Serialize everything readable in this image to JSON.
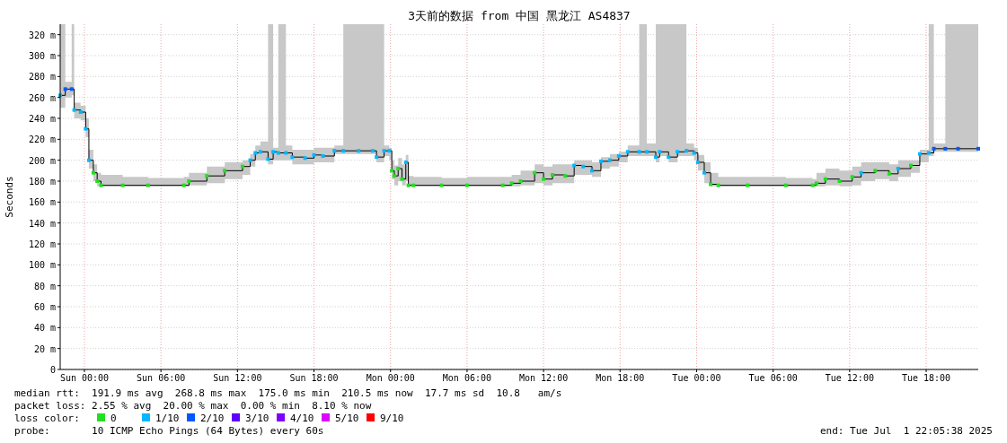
{
  "chart_data": {
    "type": "step",
    "title": "3天前的数据 from 中国 黑龙江 AS4837",
    "ylabel": "Seconds",
    "legend_title": "loss color:",
    "legend": "bottom",
    "grid": true,
    "line_style": "solid",
    "xlim": [
      "2025-06-28T22:06",
      "2025-07-01T22:05"
    ],
    "ylim": [
      0,
      330
    ],
    "xticks": [
      {
        "value": "2025-06-29T00:00",
        "label": "Sun 00:00"
      },
      {
        "value": "2025-06-29T06:00",
        "label": "Sun 06:00"
      },
      {
        "value": "2025-06-29T12:00",
        "label": "Sun 12:00"
      },
      {
        "value": "2025-06-29T18:00",
        "label": "Sun 18:00"
      },
      {
        "value": "2025-06-30T00:00",
        "label": "Mon 00:00"
      },
      {
        "value": "2025-06-30T06:00",
        "label": "Mon 06:00"
      },
      {
        "value": "2025-06-30T12:00",
        "label": "Mon 12:00"
      },
      {
        "value": "2025-06-30T18:00",
        "label": "Mon 18:00"
      },
      {
        "value": "2025-07-01T00:00",
        "label": "Tue 00:00"
      },
      {
        "value": "2025-07-01T06:00",
        "label": "Tue 06:00"
      },
      {
        "value": "2025-07-01T12:00",
        "label": "Tue 12:00"
      },
      {
        "value": "2025-07-01T18:00",
        "label": "Tue 18:00"
      }
    ],
    "yticks": [
      0,
      {
        "value": 20,
        "label": "20 m"
      },
      {
        "value": 40,
        "label": "40 m"
      },
      {
        "value": 60,
        "label": "60 m"
      },
      {
        "value": 80,
        "label": "80 m"
      },
      {
        "value": 100,
        "label": "100 m"
      },
      {
        "value": 120,
        "label": "120 m"
      },
      {
        "value": 140,
        "label": "140 m"
      },
      {
        "value": 160,
        "label": "160 m"
      },
      {
        "value": 180,
        "label": "180 m"
      },
      {
        "value": 200,
        "label": "200 m"
      },
      {
        "value": 220,
        "label": "220 m"
      },
      {
        "value": 240,
        "label": "240 m"
      },
      {
        "value": 260,
        "label": "260 m"
      },
      {
        "value": 280,
        "label": "280 m"
      },
      {
        "value": 300,
        "label": "300 m"
      },
      {
        "value": 320,
        "label": "320 m"
      }
    ],
    "annotations": [
      "median rtt:  191.9 ms avg  268.8 ms max  175.0 ms min  210.5 ms now  17.7 ms sd  10.8   am/s",
      "packet loss: 2.55 % avg  20.00 % max  0.00 % min  8.10 % now",
      "probe:       10 ICMP Echo Pings (64 Bytes) every 60s",
      "end: Tue Jul  1 22:05:38 2025"
    ],
    "series": [
      {
        "color": "#000000",
        "marker": "none",
        "x": [
          "2025-06-28T22:06",
          "2025-06-28T22:30",
          "2025-06-28T23:00",
          "2025-06-28T23:12",
          "2025-06-28T23:42",
          "2025-06-29T00:06",
          "2025-06-29T00:21",
          "2025-06-29T00:42",
          "2025-06-29T01:00",
          "2025-06-29T01:18",
          "2025-06-29T03:00",
          "2025-06-29T05:00",
          "2025-06-29T07:48",
          "2025-06-29T08:12",
          "2025-06-29T09:36",
          "2025-06-29T11:00",
          "2025-06-29T12:24",
          "2025-06-29T13:00",
          "2025-06-29T13:24",
          "2025-06-29T13:48",
          "2025-06-29T14:24",
          "2025-06-29T14:48",
          "2025-06-29T15:12",
          "2025-06-29T15:48",
          "2025-06-29T16:18",
          "2025-06-29T17:18",
          "2025-06-29T18:00",
          "2025-06-29T18:42",
          "2025-06-29T19:36",
          "2025-06-29T20:18",
          "2025-06-29T21:30",
          "2025-06-29T22:36",
          "2025-06-29T22:54",
          "2025-06-29T23:30",
          "2025-06-29T23:54",
          "2025-06-30T00:06",
          "2025-06-30T00:18",
          "2025-06-30T00:36",
          "2025-06-30T00:54",
          "2025-06-30T01:12",
          "2025-06-30T01:24",
          "2025-06-30T01:48",
          "2025-06-30T04:00",
          "2025-06-30T06:00",
          "2025-06-30T08:48",
          "2025-06-30T09:30",
          "2025-06-30T10:12",
          "2025-06-30T11:18",
          "2025-06-30T12:00",
          "2025-06-30T12:42",
          "2025-06-30T13:42",
          "2025-06-30T14:24",
          "2025-06-30T15:06",
          "2025-06-30T15:48",
          "2025-06-30T16:30",
          "2025-06-30T17:12",
          "2025-06-30T17:54",
          "2025-06-30T18:36",
          "2025-06-30T19:30",
          "2025-06-30T20:06",
          "2025-06-30T20:48",
          "2025-06-30T21:06",
          "2025-06-30T21:48",
          "2025-06-30T22:30",
          "2025-06-30T23:12",
          "2025-06-30T23:48",
          "2025-07-01T00:06",
          "2025-07-01T00:36",
          "2025-07-01T01:06",
          "2025-07-01T01:42",
          "2025-07-01T04:00",
          "2025-07-01T07:00",
          "2025-07-01T09:06",
          "2025-07-01T09:24",
          "2025-07-01T10:06",
          "2025-07-01T11:12",
          "2025-07-01T12:12",
          "2025-07-01T12:54",
          "2025-07-01T14:00",
          "2025-07-01T15:06",
          "2025-07-01T15:48",
          "2025-07-01T16:48",
          "2025-07-01T17:30",
          "2025-07-01T18:12",
          "2025-07-01T18:36",
          "2025-07-01T19:30",
          "2025-07-01T20:30",
          "2025-07-01T22:05"
        ],
        "values": [
          262,
          268,
          268,
          248,
          246,
          230,
          200,
          188,
          180,
          176,
          176,
          176,
          176,
          180,
          185,
          190,
          194,
          200,
          207,
          208,
          201,
          208,
          207,
          207,
          203,
          202,
          205,
          204,
          209,
          209,
          209,
          209,
          203,
          209,
          209,
          190,
          185,
          192,
          182,
          198,
          176,
          176,
          176,
          176,
          176,
          178,
          180,
          188,
          182,
          186,
          185,
          195,
          194,
          190,
          199,
          200,
          204,
          208,
          208,
          208,
          203,
          208,
          203,
          208,
          209,
          207,
          198,
          188,
          177,
          176,
          176,
          176,
          176,
          178,
          182,
          180,
          184,
          188,
          190,
          187,
          192,
          195,
          206,
          207,
          211,
          211,
          211,
          211
        ],
        "lower": [
          250,
          260,
          262,
          240,
          238,
          222,
          192,
          180,
          175,
          175,
          175,
          175,
          175,
          176,
          178,
          182,
          186,
          194,
          200,
          200,
          196,
          200,
          200,
          200,
          196,
          196,
          198,
          198,
          206,
          206,
          206,
          206,
          198,
          204,
          200,
          182,
          176,
          180,
          176,
          180,
          175,
          175,
          175,
          175,
          175,
          175,
          176,
          178,
          176,
          178,
          178,
          186,
          186,
          184,
          192,
          194,
          198,
          204,
          204,
          204,
          198,
          204,
          198,
          204,
          204,
          200,
          190,
          178,
          175,
          175,
          175,
          175,
          175,
          175,
          176,
          175,
          176,
          180,
          182,
          180,
          184,
          188,
          198,
          204,
          208,
          208,
          208,
          208
        ],
        "upper": [
          330,
          275,
          330,
          255,
          252,
          240,
          210,
          196,
          188,
          186,
          184,
          183,
          184,
          188,
          194,
          198,
          200,
          206,
          214,
          218,
          330,
          212,
          330,
          214,
          210,
          210,
          212,
          212,
          214,
          330,
          330,
          330,
          330,
          214,
          212,
          200,
          195,
          202,
          196,
          205,
          185,
          184,
          183,
          184,
          184,
          186,
          190,
          196,
          194,
          196,
          196,
          200,
          200,
          198,
          203,
          206,
          208,
          214,
          330,
          216,
          330,
          330,
          330,
          330,
          216,
          212,
          205,
          198,
          188,
          184,
          184,
          183,
          182,
          188,
          192,
          190,
          194,
          198,
          198,
          196,
          200,
          200,
          210,
          330,
          216,
          330,
          330,
          216
        ]
      },
      {
        "type": "scatter",
        "name": "0",
        "color": "#20e020",
        "marker": "square",
        "x": [
          "2025-06-29T00:42",
          "2025-06-29T01:00",
          "2025-06-29T01:18",
          "2025-06-29T03:00",
          "2025-06-29T05:00",
          "2025-06-29T07:48",
          "2025-06-29T08:12",
          "2025-06-29T09:36",
          "2025-06-29T11:00",
          "2025-06-29T12:24",
          "2025-06-30T00:06",
          "2025-06-30T00:18",
          "2025-06-30T00:36",
          "2025-06-30T00:54",
          "2025-06-30T01:24",
          "2025-06-30T01:48",
          "2025-06-30T04:00",
          "2025-06-30T06:00",
          "2025-06-30T08:48",
          "2025-06-30T09:30",
          "2025-06-30T10:12",
          "2025-06-30T11:18",
          "2025-06-30T12:00",
          "2025-06-30T12:42",
          "2025-06-30T13:42",
          "2025-07-01T01:06",
          "2025-07-01T01:42",
          "2025-07-01T04:00",
          "2025-07-01T07:00",
          "2025-07-01T09:06",
          "2025-07-01T09:24",
          "2025-07-01T10:06",
          "2025-07-01T11:12",
          "2025-07-01T12:12",
          "2025-07-01T14:00",
          "2025-07-01T15:06",
          "2025-07-01T16:48"
        ],
        "values": [
          188,
          180,
          176,
          176,
          176,
          176,
          180,
          185,
          190,
          194,
          190,
          185,
          192,
          182,
          176,
          176,
          176,
          176,
          176,
          178,
          180,
          188,
          182,
          186,
          185,
          177,
          176,
          176,
          176,
          176,
          178,
          182,
          180,
          184,
          190,
          187,
          195
        ]
      },
      {
        "type": "scatter",
        "name": "1/10",
        "color": "#00b8ff",
        "marker": "square",
        "x": [
          "2025-06-28T22:06",
          "2025-06-28T23:12",
          "2025-06-28T23:42",
          "2025-06-29T00:06",
          "2025-06-29T00:21",
          "2025-06-29T13:00",
          "2025-06-29T13:24",
          "2025-06-29T13:48",
          "2025-06-29T14:24",
          "2025-06-29T14:48",
          "2025-06-29T15:12",
          "2025-06-29T15:48",
          "2025-06-29T16:18",
          "2025-06-29T17:18",
          "2025-06-29T18:00",
          "2025-06-29T18:42",
          "2025-06-29T19:36",
          "2025-06-29T20:18",
          "2025-06-29T21:30",
          "2025-06-29T22:36",
          "2025-06-29T22:54",
          "2025-06-29T23:30",
          "2025-06-29T23:54",
          "2025-06-30T01:12",
          "2025-06-30T14:24",
          "2025-06-30T15:06",
          "2025-06-30T15:48",
          "2025-06-30T16:30",
          "2025-06-30T17:12",
          "2025-06-30T17:54",
          "2025-06-30T18:36",
          "2025-06-30T19:30",
          "2025-06-30T20:06",
          "2025-06-30T20:48",
          "2025-06-30T21:06",
          "2025-06-30T21:48",
          "2025-06-30T22:30",
          "2025-06-30T23:12",
          "2025-06-30T23:48",
          "2025-07-01T00:06",
          "2025-07-01T00:36",
          "2025-07-01T12:54",
          "2025-07-01T15:48",
          "2025-07-01T17:30",
          "2025-07-01T18:12"
        ],
        "values": [
          262,
          248,
          246,
          230,
          200,
          200,
          207,
          208,
          201,
          208,
          207,
          207,
          203,
          202,
          205,
          204,
          209,
          209,
          209,
          209,
          203,
          209,
          209,
          198,
          195,
          194,
          190,
          199,
          200,
          204,
          208,
          208,
          208,
          203,
          208,
          203,
          208,
          209,
          207,
          198,
          188,
          188,
          192,
          206,
          207
        ]
      },
      {
        "type": "scatter",
        "name": "2/10",
        "color": "#0059ff",
        "marker": "square",
        "x": [
          "2025-06-28T22:30",
          "2025-06-28T23:00",
          "2025-07-01T18:36",
          "2025-07-01T19:30",
          "2025-07-01T20:30",
          "2025-07-01T22:05"
        ],
        "values": [
          268,
          268,
          211,
          211,
          211,
          211
        ]
      },
      {
        "type": "scatter",
        "name": "3/10",
        "color": "#5e00ff",
        "marker": "square"
      },
      {
        "type": "scatter",
        "name": "4/10",
        "color": "#7e00ff",
        "marker": "square"
      },
      {
        "type": "scatter",
        "name": "5/10",
        "color": "#dd00ff",
        "marker": "square"
      },
      {
        "type": "scatter",
        "name": "9/10",
        "color": "#ff0000",
        "marker": "square"
      }
    ]
  }
}
